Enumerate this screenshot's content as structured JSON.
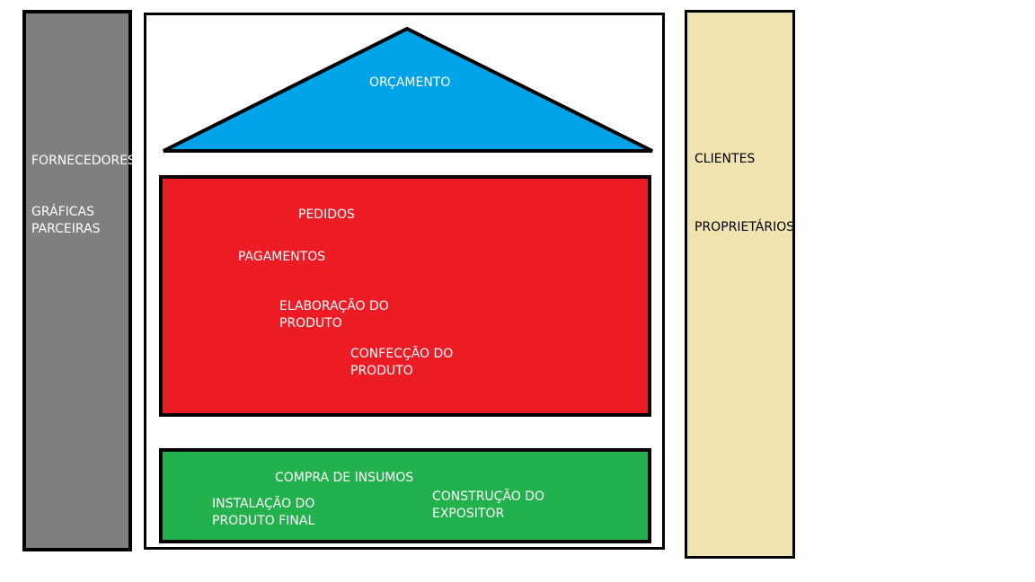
{
  "left_column": {
    "fornecedores": "FORNECEDORES",
    "graficas_line1": "GRÁFICAS",
    "graficas_line2": "PARCEIRAS"
  },
  "right_column": {
    "clientes": "CLIENTES",
    "proprietarios": "PROPRIETÁRIOS"
  },
  "roof": {
    "label": "ORÇAMENTO"
  },
  "middle": {
    "pedidos": "PEDIDOS",
    "pagamentos": "PAGAMENTOS",
    "elaboracao_line1": "ELABORAÇÃO DO",
    "elaboracao_line2": "PRODUTO",
    "confeccao_line1": "CONFECÇÃO DO",
    "confeccao_line2": "PRODUTO"
  },
  "base": {
    "compra": "COMPRA DE INSUMOS",
    "instalacao_line1": "INSTALAÇÃO DO",
    "instalacao_line2": "PRODUTO FINAL",
    "construcao_line1": "CONSTRUÇÃO DO",
    "construcao_line2": "EXPOSITOR"
  },
  "colors": {
    "left_column": "#7f7f7f",
    "right_column": "#efe4b0",
    "roof": "#00a2e8",
    "middle": "#ed1c24",
    "base": "#22b14c"
  }
}
